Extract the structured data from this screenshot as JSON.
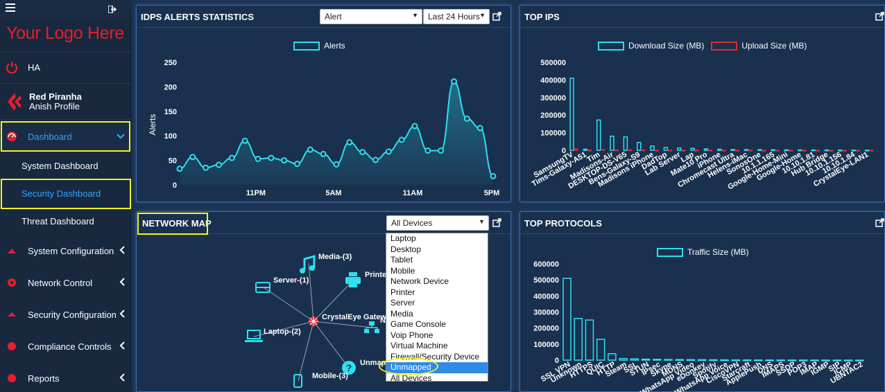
{
  "sidebar": {
    "logo": "Your Logo Here",
    "ha_label": "HA",
    "org_name": "Red Piranha",
    "profile_name": "Anish Profile",
    "dashboard_label": "Dashboard",
    "sub_items": [
      "System Dashboard",
      "Security Dashboard",
      "Threat Dashboard"
    ],
    "items": [
      "System Configuration",
      "Network Control",
      "Security Configuration",
      "Compliance Controls",
      "Reports"
    ]
  },
  "idps": {
    "title": "IDPS ALERTS STATISTICS",
    "type_select": "Alert",
    "range_select": "Last 24 Hours",
    "legend": "Alerts",
    "ylabel": "Alerts"
  },
  "top_ips": {
    "title": "TOP IPS",
    "legend_download": "Download Size (MB)",
    "legend_upload": "Upload Size (MB)"
  },
  "network_map": {
    "title": "NETWORK MAP",
    "select_value": "All Devices",
    "options": [
      "Laptop",
      "Desktop",
      "Tablet",
      "Mobile",
      "Network Device",
      "Printer",
      "Server",
      "Media",
      "Game Console",
      "Voip Phone",
      "Virtual Machine",
      "Firewall/Security Device",
      "Unmapped",
      "All Devices"
    ],
    "selected_option": "Unmapped",
    "nodes": {
      "center": "CrystalEye Gatewa",
      "media": "Media-(3)",
      "server": "Server-(1)",
      "printer": "Printer",
      "laptop": "Laptop-(2)",
      "mobile": "Mobile-(3)",
      "unmapped": "Unmap",
      "network": "N"
    }
  },
  "top_protocols": {
    "title": "TOP PROTOCOLS",
    "legend": "Traffic Size (MB)"
  },
  "colors": {
    "accent": "#2ee0f0",
    "upload": "#e02b2b",
    "highlight": "#f4f51d",
    "logo": "#e3202a"
  },
  "chart_data": [
    {
      "type": "line",
      "title": "IDPS ALERTS STATISTICS",
      "ylabel": "Alerts",
      "xlabel": "",
      "ylim": [
        0,
        250
      ],
      "yticks": [
        0,
        50,
        100,
        150,
        200,
        250
      ],
      "xtick_labels": [
        "11PM",
        "5AM",
        "11AM",
        "5PM"
      ],
      "series": [
        {
          "name": "Alerts",
          "values": [
            33,
            57,
            35,
            41,
            55,
            90,
            53,
            55,
            50,
            43,
            72,
            63,
            42,
            87,
            67,
            51,
            68,
            92,
            120,
            70,
            70,
            211,
            135,
            116,
            18
          ]
        }
      ]
    },
    {
      "type": "bar",
      "title": "TOP IPS",
      "ylim": [
        0,
        500000
      ],
      "yticks": [
        0,
        100000,
        200000,
        300000,
        400000,
        500000
      ],
      "categories": [
        "SamsungTV",
        "Tims-Galaxy-A51",
        "Tim",
        "Madisons-Air",
        "DESKTOP-DS-V65",
        "Bens-Galaxy-S9",
        "Madisons iPhone",
        "DadTop",
        "Lab Server",
        "Lap",
        "Mate10 Pro",
        "iPhone",
        "Chromecast Ultra",
        "Helens-iMac",
        "SonosOne",
        "10.1.1.165",
        "Google-Home-Mini",
        "Google-Home",
        "10.10.1.81",
        "Hub Bridge",
        "10.10.1.156",
        "10.10.1.84",
        "CrystalEye-LAN1"
      ],
      "series": [
        {
          "name": "Download Size (MB)",
          "values": [
            410000,
            6000,
            172000,
            80000,
            76000,
            44000,
            24000,
            16000,
            13000,
            11000,
            8000,
            6000,
            4500,
            4000,
            3500,
            3000,
            2500,
            2000,
            1800,
            1500,
            1200,
            1000,
            800
          ]
        },
        {
          "name": "Upload Size (MB)",
          "values": [
            8000,
            1000,
            4000,
            2000,
            2000,
            1500,
            1000,
            800,
            700,
            600,
            500,
            400,
            300,
            300,
            200,
            200,
            200,
            150,
            150,
            100,
            100,
            100,
            100
          ]
        }
      ]
    },
    {
      "type": "bar",
      "title": "TOP PROTOCOLS",
      "ylim": [
        0,
        600000
      ],
      "yticks": [
        0,
        100000,
        200000,
        300000,
        400000,
        500000,
        600000
      ],
      "categories": [
        "SSL VPN",
        "Unknown",
        "HTTPS",
        "QUIC",
        "HTTP",
        "Steam",
        "SSL",
        "STUN",
        "IPsec",
        "Skype",
        "MDNS",
        "WhatsApp Video",
        "eDonkey",
        "Spotify",
        "WhatsApp Voice",
        "CiscoVPN",
        "Starcraft",
        "ApplePush",
        "DNS",
        "IMAPS",
        "SSDP",
        "POP3",
        "IMAP",
        "IGMP",
        "SIP",
        "ICMP",
        "UBNTAC2"
      ],
      "series": [
        {
          "name": "Traffic Size (MB)",
          "values": [
            510000,
            260000,
            250000,
            130000,
            40000,
            10000,
            8000,
            6000,
            5000,
            4000,
            3500,
            3000,
            2500,
            2000,
            1800,
            1500,
            1200,
            1000,
            900,
            800,
            700,
            600,
            500,
            400,
            300,
            200,
            100
          ]
        }
      ]
    }
  ]
}
